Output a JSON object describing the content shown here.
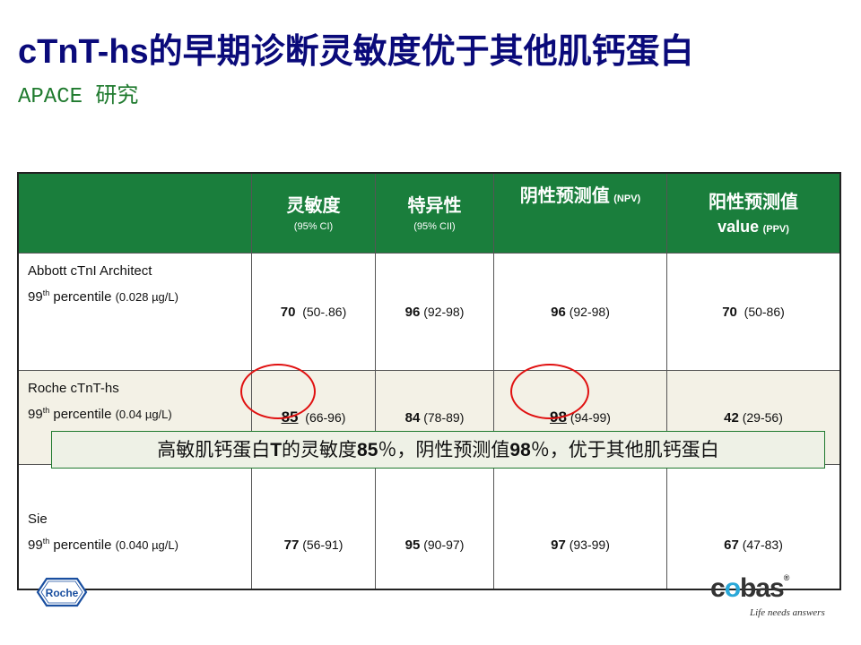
{
  "slide": {
    "title": "cTnT-hs的早期诊断灵敏度优于其他肌钙蛋白",
    "subtitle": "APACE 研究"
  },
  "table": {
    "headers": [
      {
        "main": "灵敏度",
        "sub": "(95% CI)"
      },
      {
        "main": "特异性",
        "sub": "(95% CII)"
      },
      {
        "main": "阴性预测值",
        "inline": "(NPV)"
      },
      {
        "main": "阳性预测值",
        "second": "value",
        "inline": "(PPV)"
      }
    ],
    "rows": [
      {
        "name": "Abbott cTnI Architect",
        "sup": "th",
        "pct_prefix": "99",
        "pct_text": " percentile",
        "cutoff": "(0.028 µg/L)",
        "cells": [
          {
            "value": "70",
            "ci": "(50-.86)"
          },
          {
            "value": "96",
            "ci": "(92-98)"
          },
          {
            "value": "96",
            "ci": "(92-98)"
          },
          {
            "value": "70",
            "ci": "(50-86)"
          }
        ]
      },
      {
        "name": "Roche cTnT-hs",
        "sup": "th",
        "pct_prefix": "99",
        "pct_text": " percentile",
        "cutoff": "(0.04 µg/L)",
        "cells": [
          {
            "value": "85",
            "ci": "(66-96)"
          },
          {
            "value": "84",
            "ci": "(78-89)"
          },
          {
            "value": "98",
            "ci": "(94-99)"
          },
          {
            "value": "42",
            "ci": "(29-56)"
          }
        ]
      },
      {
        "name": "Sie",
        "sup": "th",
        "pct_prefix": "99",
        "pct_text": " percentile",
        "cutoff": "(0.040 µg/L)",
        "cells": [
          {
            "value": "77",
            "ci": "(56-91)"
          },
          {
            "value": "95",
            "ci": "(90-97)"
          },
          {
            "value": "97",
            "ci": "(93-99)"
          },
          {
            "value": "67",
            "ci": "(47-83)"
          }
        ]
      }
    ]
  },
  "banner": {
    "text_a": "高敏肌钙蛋白",
    "text_b": "T",
    "text_c": "的灵敏度",
    "text_d": "85",
    "text_e": "％，阴性预测值",
    "text_f": "98",
    "text_g": "％，优于其他肌钙蛋白"
  },
  "logos": {
    "roche": "Roche",
    "cobas_c": "c",
    "cobas_o": "o",
    "cobas_rest": "bas",
    "cobas_reg": "®",
    "cobas_tagline": "Life needs answers"
  },
  "colors": {
    "title": "#0a0a7a",
    "subtitle": "#1f7a2e",
    "header_bg": "#1a7e3c",
    "highlight_circle": "#e01010",
    "roche_blue": "#1a4fa0",
    "cobas_accent": "#2aa8d8"
  }
}
